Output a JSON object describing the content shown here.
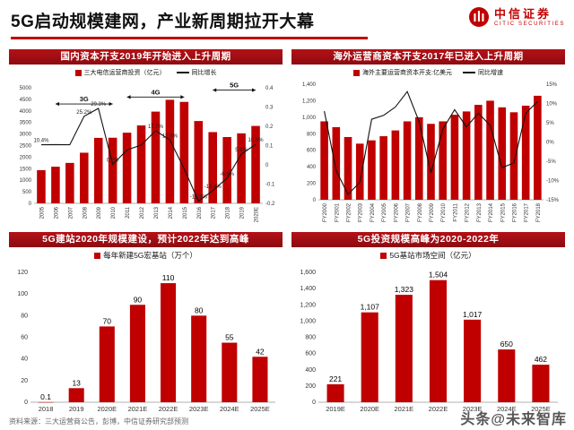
{
  "header": {
    "title": "5G启动规模建网，产业新周期拉开大幕",
    "brand_cn": "中信证券",
    "brand_en": "CITIC SECURITIES"
  },
  "footer": {
    "source": "资料来源：三大运营商公告，彭博，中信证券研究部预测",
    "watermark": "头条@未来智库"
  },
  "colors": {
    "accent": "#C00000",
    "bar": "#C00000",
    "line": "#111111",
    "panel_header_bg": "#A00D12"
  },
  "chart_data": [
    {
      "type": "bar",
      "header": "国内资本开支2019年开始进入上升周期",
      "legend": [
        {
          "type": "bar",
          "label": "三大电信运营商投资（亿元）"
        },
        {
          "type": "line",
          "label": "同比增长"
        }
      ],
      "categories": [
        "2005",
        "2006",
        "2007",
        "2008",
        "2009",
        "2010",
        "2011",
        "2012",
        "2013",
        "2014",
        "2015",
        "2016",
        "2017",
        "2018",
        "2019",
        "2020E"
      ],
      "series": [
        {
          "name": "三大电信运营商投资（亿元）",
          "render": "bar",
          "axis": "left",
          "values": [
            1435,
            1585,
            1750,
            2191,
            2833,
            2839,
            3057,
            3372,
            3969,
            4481,
            4390,
            3562,
            3083,
            2869,
            3030,
            3350
          ]
        },
        {
          "name": "同比增长",
          "render": "line",
          "axis": "right",
          "values": [
            0.104,
            0.105,
            0.104,
            0.252,
            0.293,
            0.002,
            0.077,
            0.103,
            0.177,
            0.129,
            -0.02,
            -0.189,
            -0.134,
            -0.069,
            0.056,
            0.106
          ]
        }
      ],
      "point_labels": [
        "10.4%",
        null,
        null,
        "25.2%",
        "29.3%",
        "0.2%",
        null,
        null,
        "17.7%",
        "12.9%",
        null,
        "-18.9%",
        "-13.4%",
        "-6.9%",
        "5.6%",
        "10.6%"
      ],
      "ylim": [
        0,
        5000
      ],
      "yticks": [
        0,
        500,
        1000,
        1500,
        2000,
        2500,
        3000,
        3500,
        4000,
        4500,
        5000
      ],
      "ytick_labels": [
        "0",
        "500",
        "1000",
        "1500",
        "2000",
        "2500",
        "3000",
        "3500",
        "4000",
        "4500",
        "5000"
      ],
      "y2lim": [
        -0.2,
        0.4
      ],
      "y2ticks": [
        -0.2,
        -0.1,
        0,
        0.1,
        0.2,
        0.3,
        0.4
      ],
      "y2tick_labels": [
        "-0.2",
        "-0.1",
        "0",
        "0.1",
        "0.2",
        "0.3",
        "0.4"
      ],
      "annotations": [
        {
          "label": "3G",
          "from": 1,
          "to": 5,
          "yfrac": 0.14
        },
        {
          "label": "4G",
          "from": 6,
          "to": 10,
          "yfrac": 0.08
        },
        {
          "label": "5G",
          "from": 12,
          "to": 15,
          "yfrac": 0.02
        }
      ]
    },
    {
      "type": "bar",
      "header": "海外运营商资本开支2017年已进入上升周期",
      "legend": [
        {
          "type": "bar",
          "label": "海外主要运营商资本开支:亿美元"
        },
        {
          "type": "line",
          "label": "同比增速"
        }
      ],
      "categories": [
        "FY2000",
        "FY2001",
        "FY2002",
        "FY2003",
        "FY2004",
        "FY2005",
        "FY2006",
        "FY2007",
        "FY2008",
        "FY2009",
        "FY2010",
        "FY2011",
        "FY2012",
        "FY2013",
        "FY2014",
        "FY2015",
        "FY2016",
        "FY2017",
        "FY2018"
      ],
      "series": [
        {
          "name": "海外主要运营商资本开支:亿美元",
          "render": "bar",
          "axis": "left",
          "values": [
            950,
            880,
            760,
            680,
            720,
            770,
            840,
            950,
            1000,
            920,
            950,
            1030,
            1070,
            1150,
            1200,
            1120,
            1060,
            1140,
            1260
          ]
        },
        {
          "name": "同比增速",
          "render": "line",
          "axis": "right",
          "values": [
            8,
            -7.4,
            -13.6,
            -10.5,
            5.9,
            6.9,
            9.1,
            13.1,
            5.3,
            -8.0,
            3.3,
            8.4,
            3.9,
            7.5,
            4.3,
            -6.7,
            -5.4,
            7.5,
            10.5
          ]
        }
      ],
      "ylim": [
        0,
        1400
      ],
      "yticks": [
        0,
        200,
        400,
        600,
        800,
        1000,
        1200,
        1400
      ],
      "ytick_labels": [
        "0",
        "200",
        "400",
        "600",
        "800",
        "1,000",
        "1,200",
        "1,400"
      ],
      "y2lim": [
        -15,
        15
      ],
      "y2ticks": [
        -15,
        -10,
        -5,
        0,
        5,
        10,
        15
      ],
      "y2tick_labels": [
        "-15%",
        "-10%",
        "-5%",
        "0%",
        "5%",
        "10%",
        "15%"
      ]
    },
    {
      "type": "bar",
      "header": "5G建站2020年规模建设，预计2022年达到高峰",
      "legend": [
        {
          "type": "bar",
          "label": "每年新建5G宏基站（万个）"
        }
      ],
      "categories": [
        "2018",
        "2019",
        "2020E",
        "2021E",
        "2022E",
        "2023E",
        "2024E",
        "2025E"
      ],
      "series": [
        {
          "name": "每年新建5G宏基站（万个）",
          "render": "bar",
          "axis": "left",
          "values": [
            0.1,
            13,
            70,
            90,
            110,
            80,
            55,
            42
          ]
        }
      ],
      "bar_labels": [
        "0.1",
        "13",
        "70",
        "90",
        "110",
        "80",
        "55",
        "42"
      ],
      "ylim": [
        0,
        120
      ],
      "yticks": [
        0,
        20,
        40,
        60,
        80,
        100,
        120
      ],
      "ytick_labels": [
        "0",
        "20",
        "40",
        "60",
        "80",
        "100",
        "120"
      ]
    },
    {
      "type": "bar",
      "header": "5G投资规模高峰为2020-2022年",
      "legend": [
        {
          "type": "bar",
          "label": "5G基站市场空间（亿元）"
        }
      ],
      "categories": [
        "2019E",
        "2020E",
        "2021E",
        "2022E",
        "2023E",
        "2024E",
        "2025E"
      ],
      "series": [
        {
          "name": "5G基站市场空间（亿元）",
          "render": "bar",
          "axis": "left",
          "values": [
            221,
            1107,
            1323,
            1504,
            1017,
            650,
            462
          ]
        }
      ],
      "bar_labels": [
        "221",
        "1,107",
        "1,323",
        "1,504",
        "1,017",
        "650",
        "462"
      ],
      "ylim": [
        0,
        1600
      ],
      "yticks": [
        0,
        200,
        400,
        600,
        800,
        1000,
        1200,
        1400,
        1600
      ],
      "ytick_labels": [
        "0",
        "200",
        "400",
        "600",
        "800",
        "1,000",
        "1,200",
        "1,400",
        "1,600"
      ]
    }
  ]
}
